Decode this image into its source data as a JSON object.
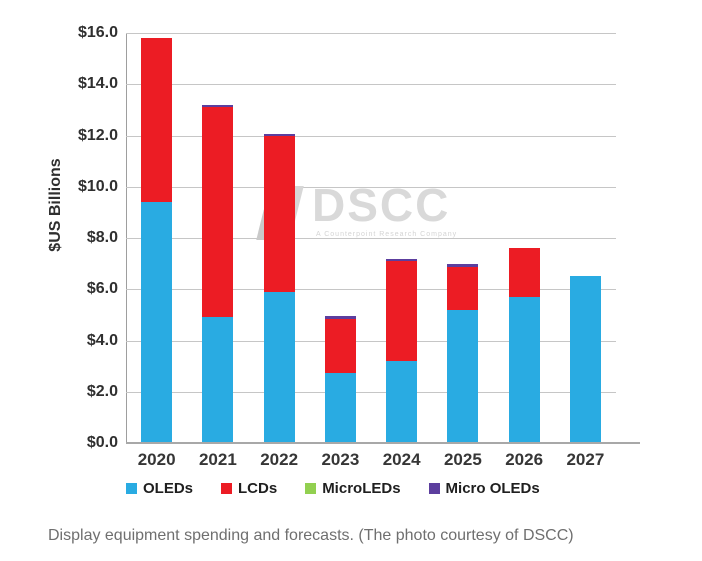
{
  "chart_data": {
    "type": "bar",
    "stacked": true,
    "categories": [
      "2020",
      "2021",
      "2022",
      "2023",
      "2024",
      "2025",
      "2026",
      "2027"
    ],
    "series": [
      {
        "name": "OLEDs",
        "color": "#29ABE2",
        "values": [
          9.4,
          4.9,
          5.9,
          2.75,
          3.2,
          5.2,
          5.7,
          6.5
        ]
      },
      {
        "name": "LCDs",
        "color": "#EC1C24",
        "values": [
          6.4,
          8.2,
          6.1,
          2.1,
          3.9,
          1.65,
          1.9,
          0
        ]
      },
      {
        "name": "MicroLEDs",
        "color": "#92D050",
        "values": [
          0,
          0,
          0,
          0,
          0,
          0,
          0,
          0
        ]
      },
      {
        "name": "Micro OLEDs",
        "color": "#5C3E9E",
        "values": [
          0,
          0.1,
          0.05,
          0.1,
          0.1,
          0.15,
          0,
          0
        ]
      }
    ],
    "totals": [
      15.8,
      13.2,
      12.05,
      4.95,
      7.2,
      7.0,
      7.6,
      6.5
    ],
    "title": "",
    "xlabel": "",
    "ylabel": "$US Billions",
    "ylim": [
      0,
      16
    ],
    "ytick_step": 2,
    "ytick_prefix": "$",
    "grid": true,
    "legend_position": "bottom"
  },
  "watermark": {
    "text": "DSCC",
    "tagline": "A Counterpoint Research Company"
  },
  "caption": {
    "text": "Display equipment spending and forecasts. (The photo courtesy of DSCC)"
  }
}
